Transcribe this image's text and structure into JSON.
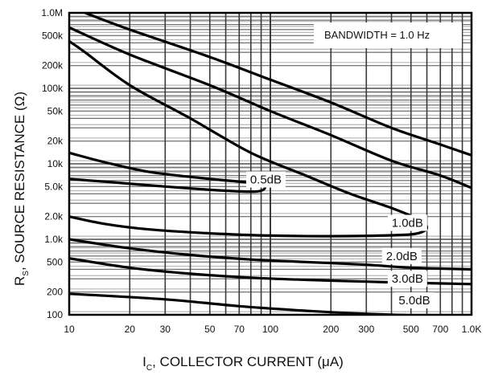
{
  "chart_data": {
    "type": "line",
    "title": "",
    "annotation": "BANDWIDTH = 1.0 Hz",
    "xlabel": {
      "main": "I",
      "sub": "C",
      "rest": ", COLLECTOR CURRENT (μA)"
    },
    "ylabel": {
      "main": "R",
      "sub": "S",
      "rest": ", SOURCE RESISTANCE  (Ω)"
    },
    "x_scale": "log",
    "y_scale": "log",
    "xlim": [
      10,
      1000
    ],
    "ylim": [
      100,
      1000000
    ],
    "grid": true,
    "x_ticks": [
      {
        "value": 10,
        "label": "10"
      },
      {
        "value": 20,
        "label": "20"
      },
      {
        "value": 30,
        "label": "30"
      },
      {
        "value": 50,
        "label": "50"
      },
      {
        "value": 70,
        "label": "70"
      },
      {
        "value": 100,
        "label": "100"
      },
      {
        "value": 200,
        "label": "200"
      },
      {
        "value": 300,
        "label": "300"
      },
      {
        "value": 500,
        "label": "500"
      },
      {
        "value": 700,
        "label": "700"
      },
      {
        "value": 1000,
        "label": "1.0K"
      }
    ],
    "y_ticks": [
      {
        "value": 100,
        "label": "100"
      },
      {
        "value": 200,
        "label": "200"
      },
      {
        "value": 500,
        "label": "500"
      },
      {
        "value": 1000,
        "label": "1.0k"
      },
      {
        "value": 2000,
        "label": "2.0k"
      },
      {
        "value": 5000,
        "label": "5.0k"
      },
      {
        "value": 10000,
        "label": "10k"
      },
      {
        "value": 20000,
        "label": "20k"
      },
      {
        "value": 50000,
        "label": "50k"
      },
      {
        "value": 100000,
        "label": "100k"
      },
      {
        "value": 200000,
        "label": "200k"
      },
      {
        "value": 500000,
        "label": "500k"
      },
      {
        "value": 1000000,
        "label": "1.0M"
      }
    ],
    "series": [
      {
        "name": "0.5dB",
        "label": "0.5dB",
        "label_at": [
          95,
          6200
        ],
        "points": [
          [
            10,
            14000
          ],
          [
            15,
            10500
          ],
          [
            25,
            7800
          ],
          [
            45,
            6500
          ],
          [
            70,
            5800
          ],
          [
            88,
            5400
          ],
          [
            94,
            4800
          ],
          [
            85,
            4300
          ],
          [
            60,
            4400
          ],
          [
            30,
            5000
          ],
          [
            15,
            5800
          ],
          [
            10,
            6300
          ]
        ]
      },
      {
        "name": "1.0dB",
        "label": "1.0dB",
        "label_at": [
          480,
          1650
        ],
        "points": [
          [
            10,
            2000
          ],
          [
            15,
            1600
          ],
          [
            25,
            1350
          ],
          [
            50,
            1200
          ],
          [
            100,
            1120
          ],
          [
            200,
            1100
          ],
          [
            400,
            1130
          ],
          [
            540,
            1200
          ],
          [
            600,
            1450
          ],
          [
            530,
            1900
          ],
          [
            400,
            2600
          ],
          [
            250,
            4000
          ],
          [
            150,
            7000
          ],
          [
            80,
            14000
          ],
          [
            40,
            40000
          ],
          [
            20,
            110000
          ],
          [
            12,
            300000
          ],
          [
            10,
            420000
          ]
        ]
      },
      {
        "name": "2.0dB",
        "label": "2.0dB",
        "label_at": [
          450,
          600
        ],
        "points": [
          [
            10,
            1000
          ],
          [
            20,
            760
          ],
          [
            40,
            620
          ],
          [
            80,
            540
          ],
          [
            150,
            500
          ],
          [
            300,
            460
          ],
          [
            500,
            420
          ],
          [
            1000,
            400
          ]
        ]
      },
      {
        "name": "3.0dB",
        "label": "3.0dB",
        "label_at": [
          480,
          300
        ],
        "points": [
          [
            10,
            560
          ],
          [
            20,
            420
          ],
          [
            40,
            350
          ],
          [
            80,
            310
          ],
          [
            150,
            290
          ],
          [
            300,
            275
          ],
          [
            500,
            265
          ],
          [
            1000,
            255
          ]
        ],
        "upper_points": [
          [
            10,
            640000
          ],
          [
            20,
            280000
          ],
          [
            50,
            110000
          ],
          [
            100,
            50000
          ],
          [
            200,
            24000
          ],
          [
            400,
            11000
          ],
          [
            700,
            7000
          ],
          [
            1000,
            4800
          ]
        ]
      },
      {
        "name": "5.0dB",
        "label": "5.0dB",
        "label_at": [
          520,
          155
        ],
        "points": [
          [
            10,
            190
          ],
          [
            30,
            160
          ],
          [
            70,
            130
          ],
          [
            150,
            113
          ],
          [
            300,
            103
          ],
          [
            600,
            97
          ],
          [
            1000,
            95
          ]
        ],
        "upper_points": [
          [
            12,
            1000000
          ],
          [
            20,
            600000
          ],
          [
            50,
            260000
          ],
          [
            100,
            130000
          ],
          [
            200,
            65000
          ],
          [
            400,
            30000
          ],
          [
            700,
            18000
          ],
          [
            1000,
            13000
          ]
        ]
      }
    ]
  }
}
